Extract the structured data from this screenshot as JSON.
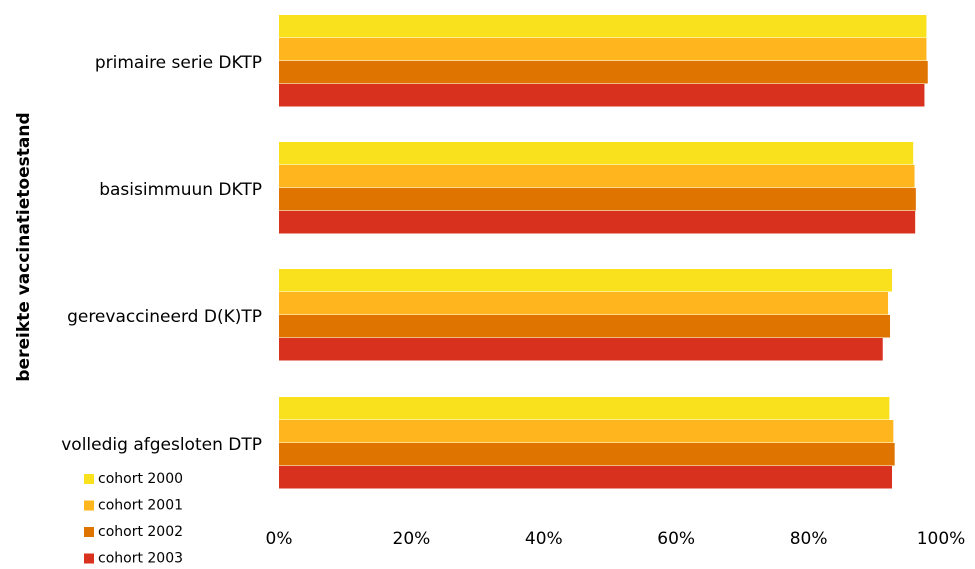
{
  "chart_data": {
    "type": "bar",
    "orientation": "horizontal",
    "ylabel": "bereikte vaccinatietoestand",
    "xlabel": "",
    "title": "",
    "categories": [
      "primaire serie DKTP",
      "basisimmuun DKTP",
      "gerevaccineerd D(K)TP",
      "volledig afgesloten DTP"
    ],
    "series": [
      {
        "name": "cohort 2000",
        "color": "#f9e11e",
        "values": [
          97.8,
          95.8,
          92.6,
          92.2
        ]
      },
      {
        "name": "cohort 2001",
        "color": "#feb51e",
        "values": [
          97.8,
          96.0,
          92.0,
          92.8
        ]
      },
      {
        "name": "cohort 2002",
        "color": "#e07400",
        "values": [
          98.0,
          96.2,
          92.3,
          93.0
        ]
      },
      {
        "name": "cohort 2003",
        "color": "#d8321e",
        "values": [
          97.5,
          96.1,
          91.2,
          92.6
        ]
      }
    ],
    "xlim": [
      0,
      100
    ],
    "ticks": [
      "0%",
      "20%",
      "40%",
      "60%",
      "80%",
      "100%"
    ],
    "tick_values": [
      0,
      20,
      40,
      60,
      80,
      100
    ],
    "grid": false,
    "legend_position": "bottom-left"
  }
}
